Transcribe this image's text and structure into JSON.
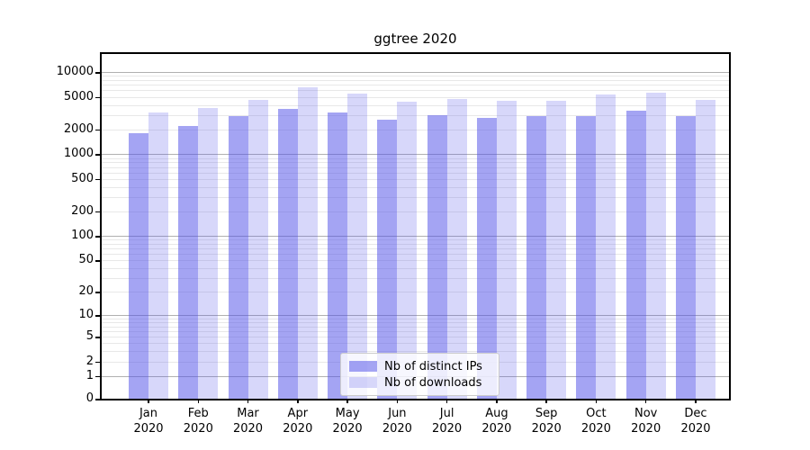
{
  "chart_data": {
    "type": "bar",
    "title": "ggtree 2020",
    "categories": [
      "Jan 2020",
      "Feb 2020",
      "Mar 2020",
      "Apr 2020",
      "May 2020",
      "Jun 2020",
      "Jul 2020",
      "Aug 2020",
      "Sep 2020",
      "Oct 2020",
      "Nov 2020",
      "Dec 2020"
    ],
    "series": [
      {
        "name": "Nb of distinct IPs",
        "color": "rgba(80,80,232,0.52)",
        "values": [
          1820,
          2190,
          2900,
          3570,
          3250,
          2620,
          2970,
          2790,
          2900,
          2920,
          3420,
          2900
        ]
      },
      {
        "name": "Nb of downloads",
        "color": "rgba(80,80,232,0.23)",
        "values": [
          3230,
          3660,
          4600,
          6570,
          5440,
          4370,
          4750,
          4450,
          4510,
          5350,
          5670,
          4630
        ]
      }
    ],
    "y_axis": {
      "scale": "log1p",
      "tick_labels": [
        "10000",
        "5000",
        "2000",
        "1000",
        "500",
        "200",
        "100",
        "50",
        "20",
        "10",
        "5",
        "2",
        "1",
        "0"
      ],
      "tick_values": [
        10000,
        5000,
        2000,
        1000,
        500,
        200,
        100,
        50,
        20,
        10,
        5,
        2,
        1,
        0
      ],
      "major_gridlines": [
        1,
        10,
        100,
        1000,
        10000
      ],
      "ylim": [
        0,
        16600
      ],
      "grid": "on"
    },
    "x_axis": {
      "tick_labels_line1": [
        "Jan",
        "Feb",
        "Mar",
        "Apr",
        "May",
        "Jun",
        "Jul",
        "Aug",
        "Sep",
        "Oct",
        "Nov",
        "Dec"
      ],
      "tick_labels_line2": "2020"
    },
    "legend": {
      "position": "lower center",
      "entries": [
        "Nb of distinct IPs",
        "Nb of downloads"
      ]
    },
    "colors": {
      "bar_dark": "#a8a8f0",
      "bar_light": "#d9d9f7",
      "grid_major": "#b0b0b0",
      "grid_minor": "#e8e8e8"
    }
  }
}
